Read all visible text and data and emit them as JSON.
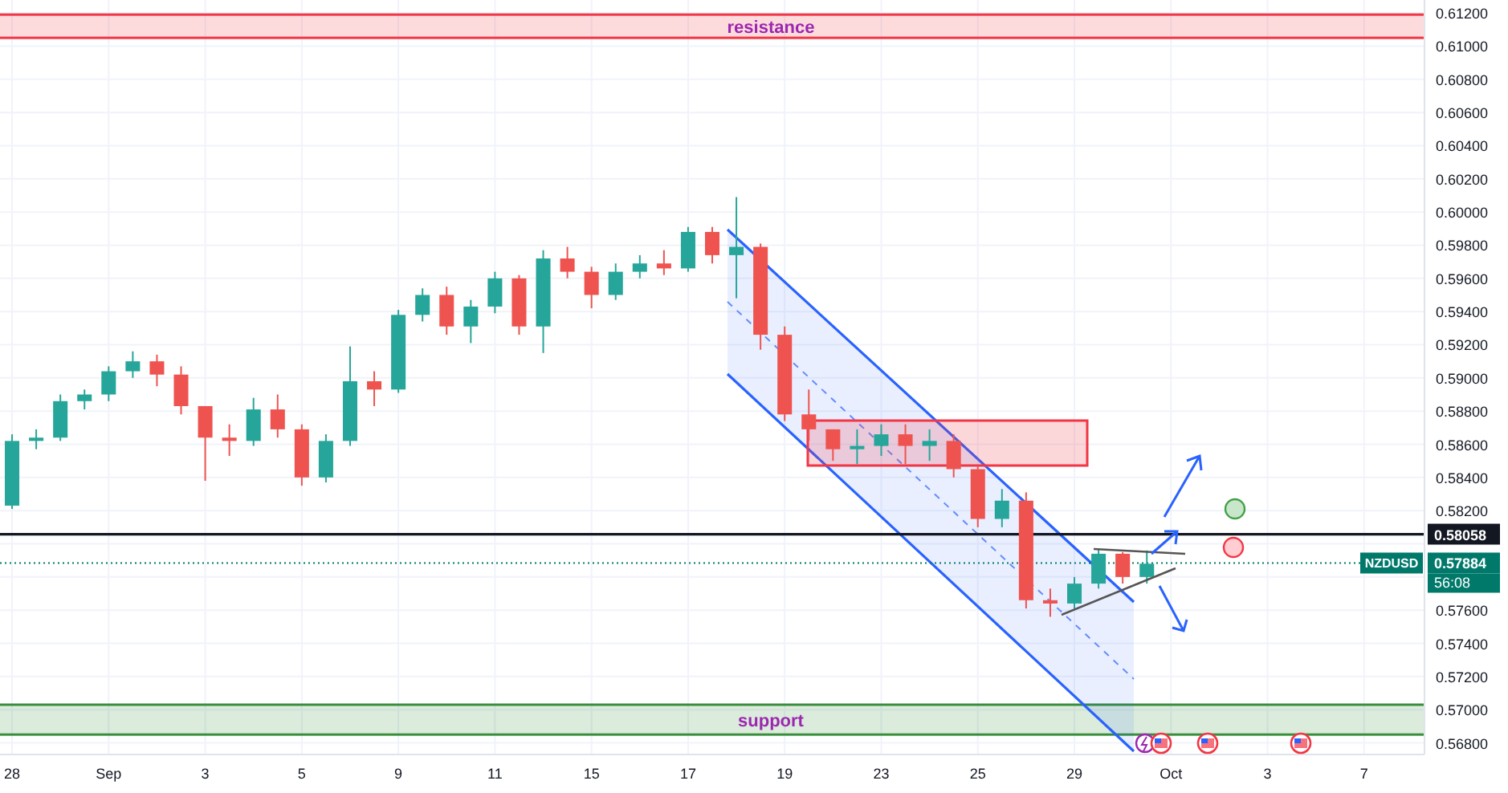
{
  "chart_data": {
    "type": "candlestick",
    "categories": [
      "28",
      null,
      null,
      null,
      "Sep",
      null,
      null,
      null,
      "3",
      null,
      null,
      null,
      "5",
      null,
      null,
      null,
      "9",
      null,
      null,
      null,
      "11",
      null,
      null,
      null,
      "15",
      null,
      null,
      null,
      "17",
      null,
      null,
      null,
      "19",
      null,
      null,
      null,
      "23",
      null,
      null,
      null,
      "25",
      null,
      null,
      null,
      "29",
      null,
      null,
      null,
      "Oct",
      null,
      null,
      null,
      "3",
      null,
      null,
      null,
      "7",
      null,
      null
    ],
    "ohlc": [
      [
        0.5823,
        0.5866,
        0.5821,
        0.5862
      ],
      [
        0.5862,
        0.5869,
        0.5857,
        0.5864
      ],
      [
        0.5864,
        0.589,
        0.5862,
        0.5886
      ],
      [
        0.5886,
        0.5893,
        0.5881,
        0.589
      ],
      [
        0.589,
        0.5907,
        0.5886,
        0.5904
      ],
      [
        0.5904,
        0.5916,
        0.59,
        0.591
      ],
      [
        0.591,
        0.5914,
        0.5895,
        0.5902
      ],
      [
        0.5902,
        0.5907,
        0.5878,
        0.5883
      ],
      [
        0.5883,
        0.5883,
        0.5838,
        0.5864
      ],
      [
        0.5864,
        0.5872,
        0.5853,
        0.5862
      ],
      [
        0.5862,
        0.5888,
        0.5859,
        0.5881
      ],
      [
        0.5881,
        0.589,
        0.5864,
        0.5869
      ],
      [
        0.5869,
        0.5872,
        0.5835,
        0.584
      ],
      [
        0.584,
        0.5866,
        0.5837,
        0.5862
      ],
      [
        0.5862,
        0.5919,
        0.5859,
        0.5898
      ],
      [
        0.5898,
        0.5904,
        0.5883,
        0.5893
      ],
      [
        0.5893,
        0.5941,
        0.5891,
        0.5938
      ],
      [
        0.5938,
        0.5954,
        0.5934,
        0.595
      ],
      [
        0.595,
        0.5955,
        0.5926,
        0.5931
      ],
      [
        0.5931,
        0.5947,
        0.5921,
        0.5943
      ],
      [
        0.5943,
        0.5964,
        0.5939,
        0.596
      ],
      [
        0.596,
        0.5962,
        0.5926,
        0.5931
      ],
      [
        0.5931,
        0.5977,
        0.5915,
        0.5972
      ],
      [
        0.5972,
        0.5979,
        0.596,
        0.5964
      ],
      [
        0.5964,
        0.5967,
        0.5942,
        0.595
      ],
      [
        0.595,
        0.5969,
        0.5947,
        0.5964
      ],
      [
        0.5964,
        0.5974,
        0.596,
        0.5969
      ],
      [
        0.5969,
        0.5977,
        0.5962,
        0.5966
      ],
      [
        0.5966,
        0.5991,
        0.5964,
        0.5988
      ],
      [
        0.5988,
        0.5991,
        0.5969,
        0.5974
      ],
      [
        0.5974,
        0.6009,
        0.5948,
        0.5979
      ],
      [
        0.5979,
        0.5981,
        0.5917,
        0.5926
      ],
      [
        0.5926,
        0.5931,
        0.5874,
        0.5878
      ],
      [
        0.5878,
        0.5893,
        0.5862,
        0.5869
      ],
      [
        0.5869,
        0.5869,
        0.585,
        0.5857
      ],
      [
        0.5857,
        0.5869,
        0.5848,
        0.5859
      ],
      [
        0.5859,
        0.5872,
        0.5853,
        0.5866
      ],
      [
        0.5866,
        0.5872,
        0.5848,
        0.5859
      ],
      [
        0.5859,
        0.5869,
        0.585,
        0.5862
      ],
      [
        0.5862,
        0.5866,
        0.584,
        0.5845
      ],
      [
        0.5845,
        0.5847,
        0.581,
        0.5815
      ],
      [
        0.5815,
        0.5833,
        0.581,
        0.5826
      ],
      [
        0.5826,
        0.5831,
        0.5761,
        0.5766
      ],
      [
        0.5766,
        0.5773,
        0.5756,
        0.5764
      ],
      [
        0.5764,
        0.578,
        0.5761,
        0.5776
      ],
      [
        0.5776,
        0.5797,
        0.5773,
        0.5794
      ],
      [
        0.5794,
        0.5795,
        0.5776,
        0.578
      ],
      [
        0.578,
        0.5796,
        0.5776,
        0.5788
      ],
      null,
      null,
      null,
      null,
      null,
      null,
      null,
      null,
      null,
      null,
      null
    ],
    "colors": [
      "#26a69a",
      "#26a69a",
      "#26a69a",
      "#26a69a",
      "#26a69a",
      "#26a69a",
      "#ef5350",
      "#ef5350",
      "#ef5350",
      "#ef5350",
      "#26a69a",
      "#ef5350",
      "#ef5350",
      "#26a69a",
      "#26a69a",
      "#ef5350",
      "#26a69a",
      "#26a69a",
      "#ef5350",
      "#26a69a",
      "#26a69a",
      "#ef5350",
      "#26a69a",
      "#ef5350",
      "#ef5350",
      "#26a69a",
      "#26a69a",
      "#ef5350",
      "#26a69a",
      "#ef5350",
      "#26a69a",
      "#ef5350",
      "#ef5350",
      "#ef5350",
      "#ef5350",
      "#26a69a",
      "#26a69a",
      "#ef5350",
      "#26a69a",
      "#ef5350",
      "#ef5350",
      "#26a69a",
      "#ef5350",
      "#ef5350",
      "#26a69a",
      "#26a69a",
      "#ef5350",
      "#26a69a",
      null,
      null,
      null,
      null,
      null,
      null,
      null,
      null,
      null,
      null,
      null
    ],
    "ylim": [
      0.5673,
      0.6122
    ],
    "yticks": [
      {
        "value": 0.568,
        "label": "0.56800"
      },
      {
        "value": 0.57,
        "label": "0.57000"
      },
      {
        "value": 0.572,
        "label": "0.57200"
      },
      {
        "value": 0.574,
        "label": "0.57400"
      },
      {
        "value": 0.576,
        "label": "0.57600"
      },
      {
        "value": 0.578,
        "label": null
      },
      {
        "value": 0.58,
        "label": null
      },
      {
        "value": 0.582,
        "label": "0.58200"
      },
      {
        "value": 0.584,
        "label": "0.58400"
      },
      {
        "value": 0.586,
        "label": "0.58600"
      },
      {
        "value": 0.588,
        "label": "0.58800"
      },
      {
        "value": 0.59,
        "label": "0.59000"
      },
      {
        "value": 0.592,
        "label": "0.59200"
      },
      {
        "value": 0.594,
        "label": "0.59400"
      },
      {
        "value": 0.596,
        "label": "0.59600"
      },
      {
        "value": 0.598,
        "label": "0.59800"
      },
      {
        "value": 0.6,
        "label": "0.60000"
      },
      {
        "value": 0.602,
        "label": "0.60200"
      },
      {
        "value": 0.604,
        "label": "0.60400"
      },
      {
        "value": 0.606,
        "label": "0.60600"
      },
      {
        "value": 0.608,
        "label": "0.60800"
      },
      {
        "value": 0.61,
        "label": "0.61000"
      },
      {
        "value": 0.612,
        "label": "0.61200"
      }
    ],
    "grid": true,
    "bands": [
      {
        "axis": "y",
        "from": 0.6105,
        "to": 0.6119,
        "label": "resistance",
        "color": "#f23645"
      },
      {
        "axis": "y",
        "from": 0.5685,
        "to": 0.5703,
        "label": "support",
        "color": "#388e3c"
      }
    ],
    "ref_lines": [
      {
        "axis": "y",
        "value": 0.58058,
        "label": "0.58058",
        "color": "#131722",
        "line_style": "solid"
      },
      {
        "axis": "y",
        "value": 0.57884,
        "label": "0.57884",
        "color": "#00796b",
        "line_style": "dotted"
      }
    ],
    "annotations": [
      "NZDUSD",
      "56:08"
    ]
  }
}
